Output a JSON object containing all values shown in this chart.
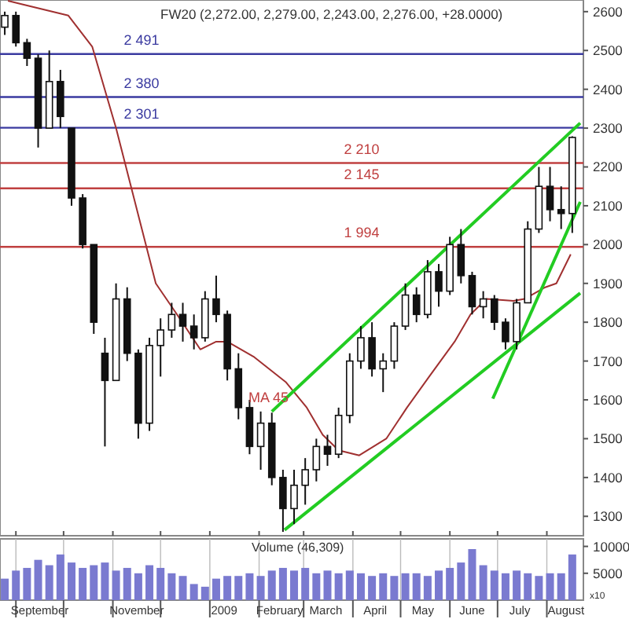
{
  "chart_data": [
    {
      "type": "candlestick",
      "title": "FW20 (2,272.00, 2,279.00, 2,243.00, 2,276.00, +28.0000)",
      "tick_labels": "y",
      "x": [
        "2008-08-25",
        "2008-09-01",
        "2008-09-08",
        "2008-09-15",
        "2008-09-22",
        "2008-09-29",
        "2008-10-06",
        "2008-10-13",
        "2008-10-20",
        "2008-10-27",
        "2008-11-03",
        "2008-11-10",
        "2008-11-17",
        "2008-11-24",
        "2008-12-01",
        "2008-12-08",
        "2008-12-15",
        "2008-12-22",
        "2008-12-29",
        "2009-01-05",
        "2009-01-12",
        "2009-01-19",
        "2009-01-26",
        "2009-02-02",
        "2009-02-09",
        "2009-02-16",
        "2009-02-23",
        "2009-03-02",
        "2009-03-09",
        "2009-03-16",
        "2009-03-23",
        "2009-03-30",
        "2009-04-06",
        "2009-04-13",
        "2009-04-20",
        "2009-04-27",
        "2009-05-04",
        "2009-05-11",
        "2009-05-18",
        "2009-05-25",
        "2009-06-01",
        "2009-06-08",
        "2009-06-15",
        "2009-06-22",
        "2009-06-29",
        "2009-07-06",
        "2009-07-13",
        "2009-07-20",
        "2009-07-27",
        "2009-08-03",
        "2009-08-10",
        "2009-08-17"
      ],
      "ohlc": [
        [
          2560,
          2600,
          2540,
          2590
        ],
        [
          2590,
          2600,
          2510,
          2520
        ],
        [
          2520,
          2530,
          2460,
          2480
        ],
        [
          2480,
          2490,
          2250,
          2300
        ],
        [
          2300,
          2500,
          2300,
          2420
        ],
        [
          2420,
          2450,
          2300,
          2330
        ],
        [
          2300,
          2300,
          2100,
          2120
        ],
        [
          2120,
          2130,
          1990,
          2000
        ],
        [
          2000,
          2000,
          1770,
          1800
        ],
        [
          1720,
          1760,
          1480,
          1650
        ],
        [
          1650,
          1900,
          1650,
          1860
        ],
        [
          1860,
          1890,
          1700,
          1720
        ],
        [
          1720,
          1730,
          1500,
          1540
        ],
        [
          1540,
          1760,
          1520,
          1740
        ],
        [
          1740,
          1810,
          1660,
          1780
        ],
        [
          1780,
          1850,
          1760,
          1820
        ],
        [
          1820,
          1850,
          1750,
          1790
        ],
        [
          1790,
          1820,
          1730,
          1760
        ],
        [
          1760,
          1880,
          1750,
          1860
        ],
        [
          1860,
          1920,
          1800,
          1820
        ],
        [
          1820,
          1830,
          1650,
          1680
        ],
        [
          1680,
          1720,
          1550,
          1580
        ],
        [
          1580,
          1600,
          1460,
          1480
        ],
        [
          1480,
          1570,
          1420,
          1540
        ],
        [
          1540,
          1567,
          1380,
          1400
        ],
        [
          1400,
          1420,
          1260,
          1320
        ],
        [
          1320,
          1420,
          1280,
          1380
        ],
        [
          1380,
          1450,
          1330,
          1420
        ],
        [
          1420,
          1500,
          1390,
          1480
        ],
        [
          1480,
          1510,
          1430,
          1460
        ],
        [
          1460,
          1580,
          1450,
          1560
        ],
        [
          1560,
          1720,
          1540,
          1700
        ],
        [
          1700,
          1790,
          1680,
          1760
        ],
        [
          1760,
          1800,
          1660,
          1680
        ],
        [
          1680,
          1720,
          1620,
          1700
        ],
        [
          1700,
          1800,
          1680,
          1790
        ],
        [
          1790,
          1900,
          1780,
          1870
        ],
        [
          1870,
          1890,
          1800,
          1820
        ],
        [
          1820,
          1960,
          1810,
          1930
        ],
        [
          1930,
          1950,
          1840,
          1880
        ],
        [
          1880,
          2020,
          1870,
          2000
        ],
        [
          2000,
          2040,
          1900,
          1920
        ],
        [
          1920,
          1930,
          1820,
          1840
        ],
        [
          1840,
          1880,
          1810,
          1860
        ],
        [
          1860,
          1870,
          1780,
          1800
        ],
        [
          1800,
          1810,
          1730,
          1750
        ],
        [
          1750,
          1860,
          1730,
          1850
        ],
        [
          1850,
          2060,
          1850,
          2040
        ],
        [
          2040,
          2200,
          2030,
          2150
        ],
        [
          2150,
          2200,
          2060,
          2090
        ],
        [
          2090,
          2150,
          2040,
          2080
        ],
        [
          2080,
          2279,
          2030,
          2276
        ]
      ],
      "series": [
        {
          "type": "line",
          "color": "#a03030",
          "x": [
            "2008-08-27",
            "2008-09-04",
            "2008-10-04",
            "2008-10-19",
            "2008-11-03",
            "2008-11-18",
            "2008-11-28",
            "2008-12-13",
            "2008-12-26",
            "2009-01-05",
            "2009-01-12",
            "2009-01-29",
            "2009-02-18",
            "2009-03-03",
            "2009-03-13",
            "2009-03-23",
            "2009-04-05",
            "2009-04-22",
            "2009-05-05",
            "2009-05-19",
            "2009-06-04",
            "2009-06-14",
            "2009-06-24",
            "2009-07-11",
            "2009-07-18",
            "2009-07-31",
            "2009-08-07",
            "2009-08-16"
          ],
          "values": [
            2628,
            2620,
            2590,
            2510,
            2300,
            2060,
            1900,
            1810,
            1730,
            1750,
            1750,
            1710,
            1645,
            1580,
            1510,
            1470,
            1457,
            1500,
            1580,
            1660,
            1750,
            1820,
            1860,
            1855,
            1860,
            1890,
            1900,
            1975
          ]
        },
        {
          "type": "line",
          "color": "#22cc22",
          "x": [
            "2009-02-09",
            "2009-08-22"
          ],
          "values": [
            1570,
            2313
          ]
        },
        {
          "type": "line",
          "color": "#22cc22",
          "x": [
            "2009-02-17",
            "2009-08-22"
          ],
          "values": [
            1265,
            1875
          ]
        },
        {
          "type": "line",
          "color": "#22cc22",
          "x": [
            "2009-06-28",
            "2009-08-22"
          ],
          "values": [
            1603,
            2110
          ]
        }
      ],
      "ref_lines": [
        {
          "axis": "y",
          "value": 2491,
          "label": "2 491",
          "color": "#3a3aa0"
        },
        {
          "axis": "y",
          "value": 2380,
          "label": "2 380",
          "color": "#3a3aa0"
        },
        {
          "axis": "y",
          "value": 2301,
          "label": "2 301",
          "color": "#3a3aa0"
        },
        {
          "axis": "y",
          "value": 2210,
          "label": "2 210",
          "color": "#c04040"
        },
        {
          "axis": "y",
          "value": 2145,
          "label": "2 145",
          "color": "#c04040"
        },
        {
          "axis": "y",
          "value": 1994,
          "label": "1 994",
          "color": "#c04040"
        }
      ],
      "annotations": [
        "MA 45"
      ],
      "xlim": [
        "2008-08-22",
        "2009-08-24"
      ],
      "ylim": [
        1250,
        2630
      ],
      "xticks": [
        {
          "value": "2008-09-01",
          "label": null
        },
        {
          "value": "2008-10-01",
          "label": null
        },
        {
          "value": "2008-11-01",
          "label": null
        },
        {
          "value": "2008-12-01",
          "label": null
        },
        {
          "value": "2009-01-01",
          "label": null
        },
        {
          "value": "2009-02-01",
          "label": null
        },
        {
          "value": "2009-03-01",
          "label": null
        },
        {
          "value": "2009-04-01",
          "label": null
        },
        {
          "value": "2009-05-01",
          "label": null
        },
        {
          "value": "2009-06-01",
          "label": null
        },
        {
          "value": "2009-07-01",
          "label": null
        },
        {
          "value": "2009-08-01",
          "label": null
        }
      ],
      "yticks": [
        1300,
        1400,
        1500,
        1600,
        1700,
        1800,
        1900,
        2000,
        2100,
        2200,
        2300,
        2400,
        2500,
        2600
      ]
    },
    {
      "type": "bar",
      "title": "Volume (46,309)",
      "color": "#7a7ad0",
      "grid": "x",
      "x": [
        "2008-08-25",
        "2008-09-01",
        "2008-09-08",
        "2008-09-15",
        "2008-09-22",
        "2008-09-29",
        "2008-10-06",
        "2008-10-13",
        "2008-10-20",
        "2008-10-27",
        "2008-11-03",
        "2008-11-10",
        "2008-11-17",
        "2008-11-24",
        "2008-12-01",
        "2008-12-08",
        "2008-12-15",
        "2008-12-22",
        "2008-12-29",
        "2009-01-05",
        "2009-01-12",
        "2009-01-19",
        "2009-01-26",
        "2009-02-02",
        "2009-02-09",
        "2009-02-16",
        "2009-02-23",
        "2009-03-02",
        "2009-03-09",
        "2009-03-16",
        "2009-03-23",
        "2009-03-30",
        "2009-04-06",
        "2009-04-13",
        "2009-04-20",
        "2009-04-27",
        "2009-05-04",
        "2009-05-11",
        "2009-05-18",
        "2009-05-25",
        "2009-06-01",
        "2009-06-08",
        "2009-06-15",
        "2009-06-22",
        "2009-06-29",
        "2009-07-06",
        "2009-07-13",
        "2009-07-20",
        "2009-07-27",
        "2009-08-03",
        "2009-08-10",
        "2009-08-17"
      ],
      "values": [
        4000,
        5500,
        6000,
        7500,
        6500,
        8500,
        7000,
        6000,
        6500,
        7000,
        5500,
        6000,
        5000,
        6500,
        6000,
        5000,
        4500,
        3000,
        2500,
        4000,
        4500,
        4500,
        5000,
        4500,
        5500,
        6000,
        5500,
        6000,
        5000,
        5500,
        5000,
        5500,
        5000,
        4500,
        5000,
        4500,
        5000,
        5000,
        4500,
        5500,
        6000,
        7000,
        9500,
        6500,
        5500,
        5000,
        5500,
        5000,
        4500,
        5000,
        5000,
        8500
      ],
      "annotations": [
        "x10"
      ],
      "xlim": [
        "2008-08-22",
        "2009-08-24"
      ],
      "ylim": [
        0,
        11400
      ],
      "yticks": [
        5000,
        10000
      ],
      "xticks": [
        {
          "value": "2008-09-01",
          "label": null
        },
        {
          "value": "2008-09-16",
          "label": "September"
        },
        {
          "value": "2008-10-01",
          "label": null
        },
        {
          "value": "2008-11-01",
          "label": null
        },
        {
          "value": "2008-11-16",
          "label": "November"
        },
        {
          "value": "2008-12-01",
          "label": null
        },
        {
          "value": "2009-01-01",
          "label": null
        },
        {
          "value": "2009-01-10",
          "label": "2009"
        },
        {
          "value": "2009-02-01",
          "label": null
        },
        {
          "value": "2009-02-14",
          "label": "February"
        },
        {
          "value": "2009-03-01",
          "label": null
        },
        {
          "value": "2009-03-15",
          "label": "March"
        },
        {
          "value": "2009-04-01",
          "label": null
        },
        {
          "value": "2009-04-15",
          "label": "April"
        },
        {
          "value": "2009-05-01",
          "label": null
        },
        {
          "value": "2009-05-15",
          "label": "May"
        },
        {
          "value": "2009-06-01",
          "label": null
        },
        {
          "value": "2009-06-15",
          "label": "June"
        },
        {
          "value": "2009-07-01",
          "label": null
        },
        {
          "value": "2009-07-15",
          "label": "July"
        },
        {
          "value": "2009-08-01",
          "label": null
        },
        {
          "value": "2009-08-13",
          "label": "August"
        }
      ]
    }
  ]
}
